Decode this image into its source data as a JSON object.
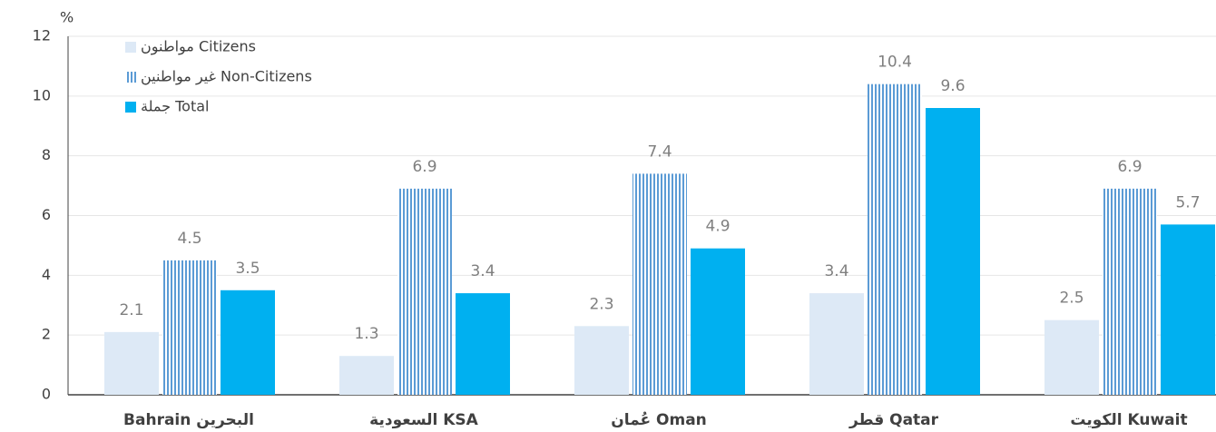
{
  "chart_data": {
    "type": "bar",
    "y_label": "%",
    "categories": [
      "Bahrain البحرين",
      "السعودية KSA",
      "عُمان Oman",
      "قطر Qatar",
      "الكويت Kuwait"
    ],
    "series": [
      {
        "name": "مواطنون Citizens",
        "color": "#dde9f6",
        "values": [
          2.1,
          1.3,
          2.3,
          3.4,
          2.5
        ]
      },
      {
        "name": "غير مواطنين Non-Citizens",
        "color": "#5b9bd5",
        "pattern": "vertical-stripes",
        "values": [
          4.5,
          6.9,
          7.4,
          10.4,
          6.9
        ]
      },
      {
        "name": "جملة Total",
        "color": "#00b0f0",
        "values": [
          3.5,
          3.4,
          4.9,
          9.6,
          5.7
        ]
      }
    ],
    "ylim": [
      0,
      12
    ],
    "yticks": [
      0,
      2,
      4,
      6,
      8,
      10,
      12
    ],
    "grid": true
  }
}
